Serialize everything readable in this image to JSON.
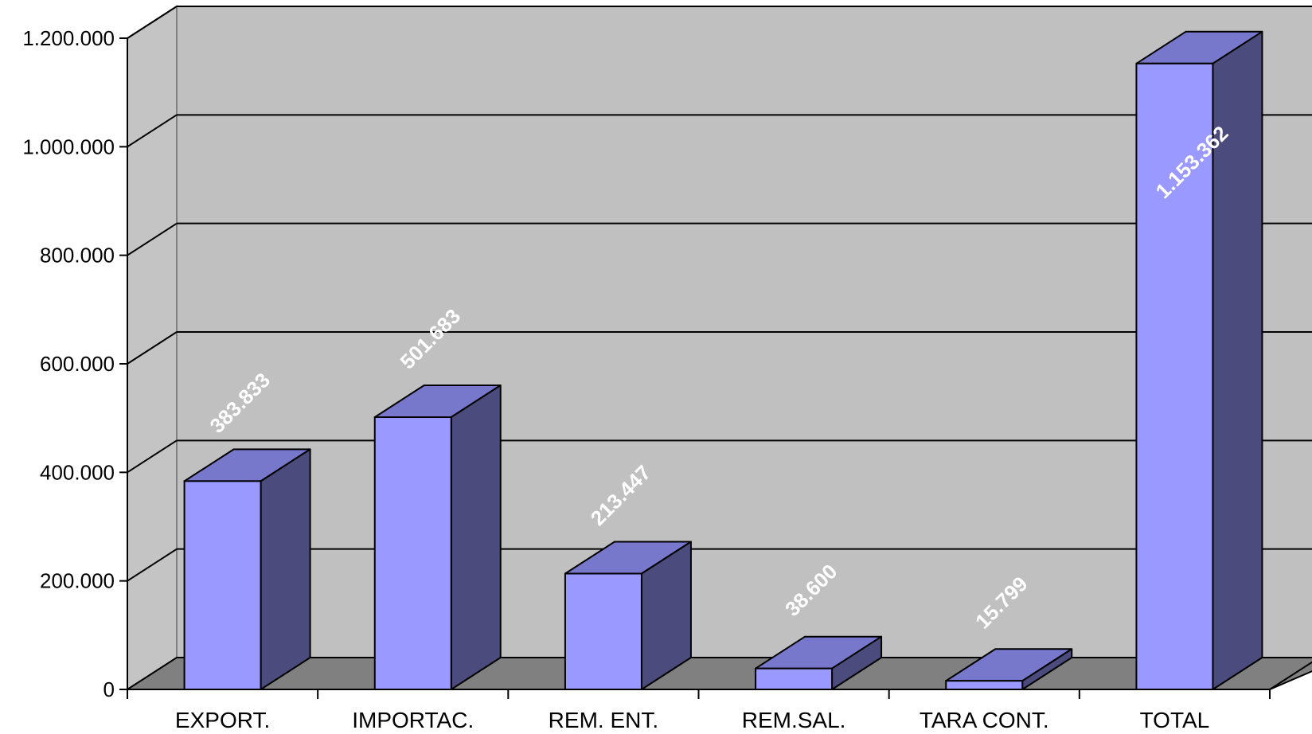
{
  "chart_data": {
    "type": "bar",
    "style": "3d-column",
    "categories": [
      "EXPORT.",
      "IMPORTAC.",
      "REM. ENT.",
      "REM.SAL.",
      "TARA CONT.",
      "TOTAL"
    ],
    "values": [
      383833,
      501683,
      213447,
      38600,
      15799,
      1153362
    ],
    "value_labels": [
      "383.833",
      "501.683",
      "213.447",
      "38.600",
      "15.799",
      "1.153.362"
    ],
    "ylim": [
      0,
      1200000
    ],
    "y_ticks": [
      {
        "value": 0,
        "label": "0"
      },
      {
        "value": 200000,
        "label": "200.000"
      },
      {
        "value": 400000,
        "label": "400.000"
      },
      {
        "value": 600000,
        "label": "600.000"
      },
      {
        "value": 800000,
        "label": "800.000"
      },
      {
        "value": 1000000,
        "label": "1.000.000"
      },
      {
        "value": 1200000,
        "label": "1.200.000"
      }
    ],
    "grid": true,
    "legend": "none",
    "colors": {
      "bar_front": "#9999ff",
      "bar_top": "#7777cc",
      "bar_side": "#4b4b7d",
      "wall": "#c0c0c0",
      "wall_side": "#c4c4c4",
      "floor": "#808080",
      "gridline": "#000000",
      "data_label": "#ffffff"
    }
  }
}
